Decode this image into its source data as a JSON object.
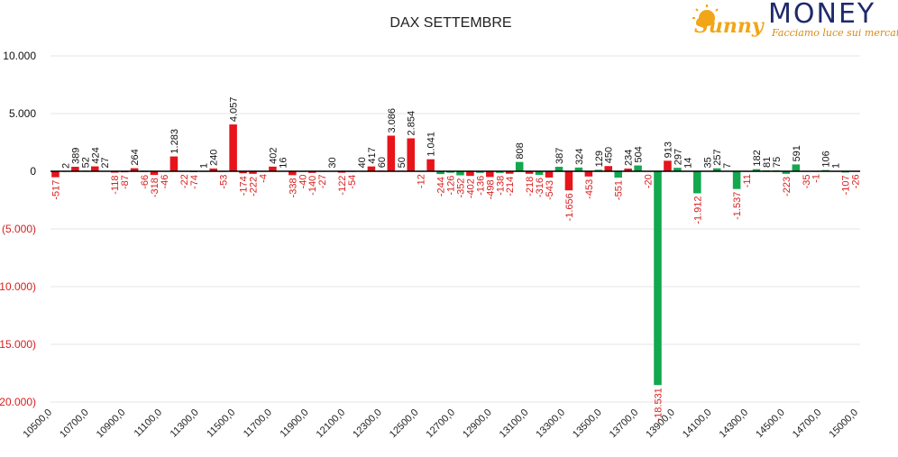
{
  "brand": {
    "logo_word": "MONEY",
    "logo_script": "Sunny",
    "tagline": "Facciamo luce sui mercati",
    "colors": {
      "navy": "#1f2a6b",
      "gold": "#f2a516",
      "orange": "#d98a12"
    }
  },
  "chart_data": {
    "type": "bar",
    "title": "DAX SETTEMBRE",
    "xlabel": "",
    "ylabel": "",
    "ylim": [
      -20000,
      10000
    ],
    "yticks": [
      10000,
      5000,
      0,
      -5000,
      -10000,
      -15000,
      -20000
    ],
    "ytick_labels": [
      "10.000",
      "5.000",
      "0",
      "(5.000)",
      "(10.000)",
      "(15.000)",
      "(20.000)"
    ],
    "grid": true,
    "legend": "none",
    "colors": {
      "call": "#e8141b",
      "put": "#12a84e",
      "positive_label": "#111111",
      "negative_label": "#d81e1e",
      "axis": "#000000"
    },
    "xtick_labels": [
      "10500,0",
      "10700,0",
      "10900,0",
      "11100,0",
      "11300,0",
      "11500,0",
      "11700,0",
      "11900,0",
      "12100,0",
      "12300,0",
      "12500,0",
      "12700,0",
      "12900,0",
      "13100,0",
      "13300,0",
      "13500,0",
      "13700,0",
      "13900,0",
      "14100,0",
      "14300,0",
      "14500,0",
      "14700,0",
      "15000,0"
    ],
    "bars": [
      {
        "v": -517,
        "label": "-517",
        "color": "red"
      },
      {
        "v": 2,
        "label": "2",
        "color": "red"
      },
      {
        "v": 389,
        "label": "389",
        "color": "red"
      },
      {
        "v": 52,
        "label": "52",
        "color": "red"
      },
      {
        "v": 424,
        "label": "424",
        "color": "red"
      },
      {
        "v": 27,
        "label": "27",
        "color": "red"
      },
      {
        "v": -118,
        "label": "-118",
        "color": "red"
      },
      {
        "v": -87,
        "label": "-87",
        "color": "red"
      },
      {
        "v": 264,
        "label": "264",
        "color": "red"
      },
      {
        "v": -66,
        "label": "-66",
        "color": "red"
      },
      {
        "v": -318,
        "label": "-318",
        "color": "red"
      },
      {
        "v": -46,
        "label": "-46",
        "color": "red"
      },
      {
        "v": 1283,
        "label": "1.283",
        "color": "red"
      },
      {
        "v": -22,
        "label": "-22",
        "color": "red"
      },
      {
        "v": -74,
        "label": "-74",
        "color": "red"
      },
      {
        "v": 1,
        "label": "1",
        "color": "red"
      },
      {
        "v": 240,
        "label": "240",
        "color": "red"
      },
      {
        "v": -53,
        "label": "-53",
        "color": "red"
      },
      {
        "v": 4057,
        "label": "4.057",
        "color": "red"
      },
      {
        "v": -174,
        "label": "-174",
        "color": "red"
      },
      {
        "v": -222,
        "label": "-222",
        "color": "red"
      },
      {
        "v": -4,
        "label": "-4",
        "color": "red"
      },
      {
        "v": 402,
        "label": "402",
        "color": "red"
      },
      {
        "v": 16,
        "label": "16",
        "color": "red"
      },
      {
        "v": -338,
        "label": "-338",
        "color": "red"
      },
      {
        "v": -40,
        "label": "-40",
        "color": "red"
      },
      {
        "v": -140,
        "label": "-140",
        "color": "red"
      },
      {
        "v": -27,
        "label": "-27",
        "color": "red"
      },
      {
        "v": 30,
        "label": "30",
        "color": "red"
      },
      {
        "v": -122,
        "label": "-122",
        "color": "red"
      },
      {
        "v": -54,
        "label": "-54",
        "color": "red"
      },
      {
        "v": 40,
        "label": "40",
        "color": "red"
      },
      {
        "v": 417,
        "label": "417",
        "color": "red"
      },
      {
        "v": 60,
        "label": "60",
        "color": "red"
      },
      {
        "v": 3086,
        "label": "3.086",
        "color": "red"
      },
      {
        "v": 50,
        "label": "50",
        "color": "red"
      },
      {
        "v": 2854,
        "label": "2.854",
        "color": "red"
      },
      {
        "v": -12,
        "label": "-12",
        "color": "red"
      },
      {
        "v": 1041,
        "label": "1.041",
        "color": "red"
      },
      {
        "v": -244,
        "label": "-244",
        "color": "green"
      },
      {
        "v": -126,
        "label": "-126",
        "color": "green"
      },
      {
        "v": -352,
        "label": "-352",
        "color": "green"
      },
      {
        "v": -402,
        "label": "-402",
        "color": "red"
      },
      {
        "v": -136,
        "label": "-136",
        "color": "green"
      },
      {
        "v": -498,
        "label": "-498",
        "color": "red"
      },
      {
        "v": -138,
        "label": "-138",
        "color": "green"
      },
      {
        "v": -214,
        "label": "-214",
        "color": "red"
      },
      {
        "v": 808,
        "label": "808",
        "color": "green"
      },
      {
        "v": -218,
        "label": "-218",
        "color": "red"
      },
      {
        "v": -316,
        "label": "-316",
        "color": "green"
      },
      {
        "v": -543,
        "label": "-543",
        "color": "red"
      },
      {
        "v": 387,
        "label": "387",
        "color": "green"
      },
      {
        "v": -1656,
        "label": "-1.656",
        "color": "red"
      },
      {
        "v": 324,
        "label": "324",
        "color": "green"
      },
      {
        "v": -453,
        "label": "-453",
        "color": "red"
      },
      {
        "v": 129,
        "label": "129",
        "color": "green"
      },
      {
        "v": 450,
        "label": "450",
        "color": "red"
      },
      {
        "v": -551,
        "label": "-551",
        "color": "green"
      },
      {
        "v": 234,
        "label": "234",
        "color": "red"
      },
      {
        "v": 504,
        "label": "504",
        "color": "green"
      },
      {
        "v": -20,
        "label": "-20",
        "color": "red"
      },
      {
        "v": -18531,
        "label": "-18.531",
        "color": "green"
      },
      {
        "v": 913,
        "label": "913",
        "color": "red"
      },
      {
        "v": 297,
        "label": "297",
        "color": "green"
      },
      {
        "v": 14,
        "label": "14",
        "color": "green"
      },
      {
        "v": -1912,
        "label": "-1.912",
        "color": "green"
      },
      {
        "v": 35,
        "label": "35",
        "color": "green"
      },
      {
        "v": 257,
        "label": "257",
        "color": "green"
      },
      {
        "v": 7,
        "label": "7",
        "color": "green"
      },
      {
        "v": -1537,
        "label": "-1.537",
        "color": "green"
      },
      {
        "v": -11,
        "label": "-11",
        "color": "green"
      },
      {
        "v": 182,
        "label": "182",
        "color": "green"
      },
      {
        "v": 81,
        "label": "81",
        "color": "green"
      },
      {
        "v": 75,
        "label": "75",
        "color": "green"
      },
      {
        "v": -223,
        "label": "-223",
        "color": "green"
      },
      {
        "v": 591,
        "label": "591",
        "color": "green"
      },
      {
        "v": -35,
        "label": "-35",
        "color": "green"
      },
      {
        "v": -1,
        "label": "-1",
        "color": "green"
      },
      {
        "v": 106,
        "label": "106",
        "color": "green"
      },
      {
        "v": 1,
        "label": "1",
        "color": "green"
      },
      {
        "v": -107,
        "label": "-107",
        "color": "green"
      },
      {
        "v": -26,
        "label": "-26",
        "color": "green"
      }
    ]
  }
}
